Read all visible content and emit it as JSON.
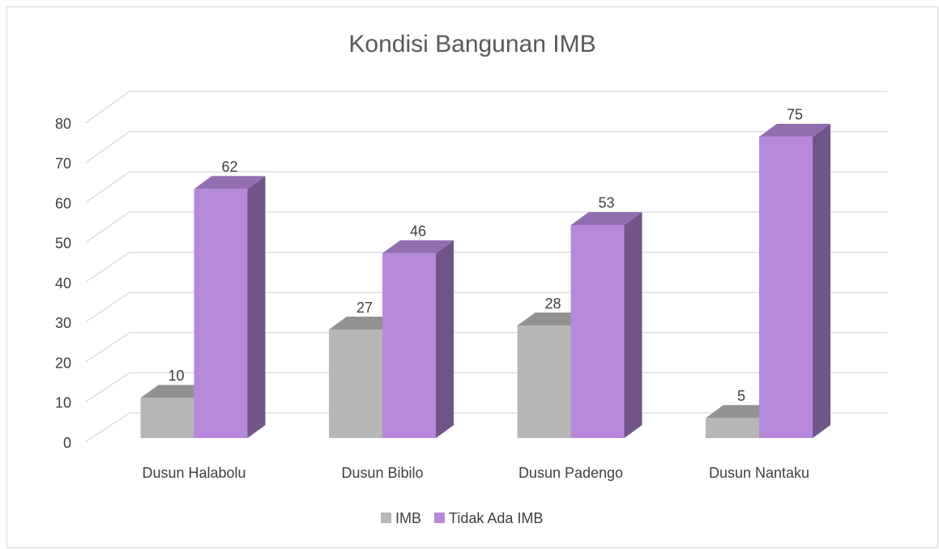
{
  "chart_data": {
    "type": "bar3d",
    "title": "Kondisi Bangunan IMB",
    "categories": [
      "Dusun Halabolu",
      "Dusun Bibilo",
      "Dusun Padengo",
      "Dusun Nantaku"
    ],
    "series": [
      {
        "name": "IMB",
        "color": "#b7b7b7",
        "values": [
          10,
          27,
          28,
          5
        ]
      },
      {
        "name": "Tidak Ada IMB",
        "color": "#b789dd",
        "values": [
          62,
          46,
          53,
          75
        ]
      }
    ],
    "ylim": [
      0,
      80
    ],
    "yticks": [
      0,
      10,
      20,
      30,
      40,
      50,
      60,
      70,
      80
    ],
    "grid": true,
    "legend": "bottom"
  }
}
